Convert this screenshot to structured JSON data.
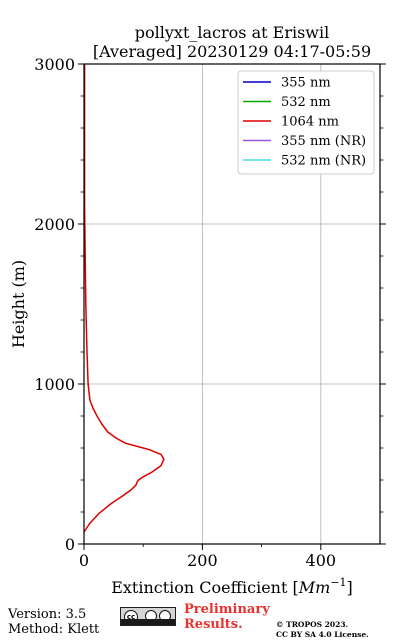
{
  "chart_data": {
    "type": "line",
    "title_line1": "pollyxt_lacros at Eriswil",
    "title_line2": "[Averaged] 20230129 04:17-05:59",
    "xlabel": "Extinction Coefficient [",
    "xlabel_unit": "Mm",
    "xlabel_exp": "−1",
    "xlabel_close": "]",
    "ylabel": "Height (m)",
    "xlim": [
      0,
      500
    ],
    "ylim": [
      0,
      3000
    ],
    "x_ticks": [
      "0",
      "200",
      "400"
    ],
    "x_tick_values": [
      0,
      200,
      400
    ],
    "y_ticks": [
      "0",
      "1000",
      "2000",
      "3000"
    ],
    "y_tick_values": [
      0,
      1000,
      2000,
      3000
    ],
    "grid": true,
    "legend_position": "top-right",
    "series": [
      {
        "name": "355 nm",
        "color": "#0000cc",
        "x": [],
        "y": []
      },
      {
        "name": "532 nm",
        "color": "#00aa00",
        "x": [],
        "y": []
      },
      {
        "name": "1064 nm",
        "color": "#dd0000",
        "x": [
          0,
          10,
          25,
          45,
          65,
          80,
          88,
          90,
          92,
          100,
          115,
          130,
          135,
          130,
          110,
          90,
          70,
          55,
          40,
          30,
          22,
          15,
          10,
          7,
          5,
          3,
          2,
          1,
          1,
          1
        ],
        "y": [
          75,
          130,
          190,
          250,
          300,
          340,
          370,
          390,
          400,
          420,
          450,
          490,
          530,
          560,
          590,
          610,
          630,
          660,
          700,
          750,
          800,
          850,
          900,
          1000,
          1200,
          1500,
          1800,
          2100,
          2500,
          3000
        ]
      },
      {
        "name": "355 nm (NR)",
        "color": "#9955dd",
        "x": [],
        "y": []
      },
      {
        "name": "532 nm (NR)",
        "color": "#44dddd",
        "x": [],
        "y": []
      }
    ]
  },
  "footer": {
    "version": "Version: 3.5",
    "method": "Method: Klett",
    "preliminary_line1": "Preliminary",
    "preliminary_line2": "Results.",
    "copyright_line1": "© TROPOS 2023.",
    "copyright_line2": "CC BY SA 4.0 License."
  }
}
